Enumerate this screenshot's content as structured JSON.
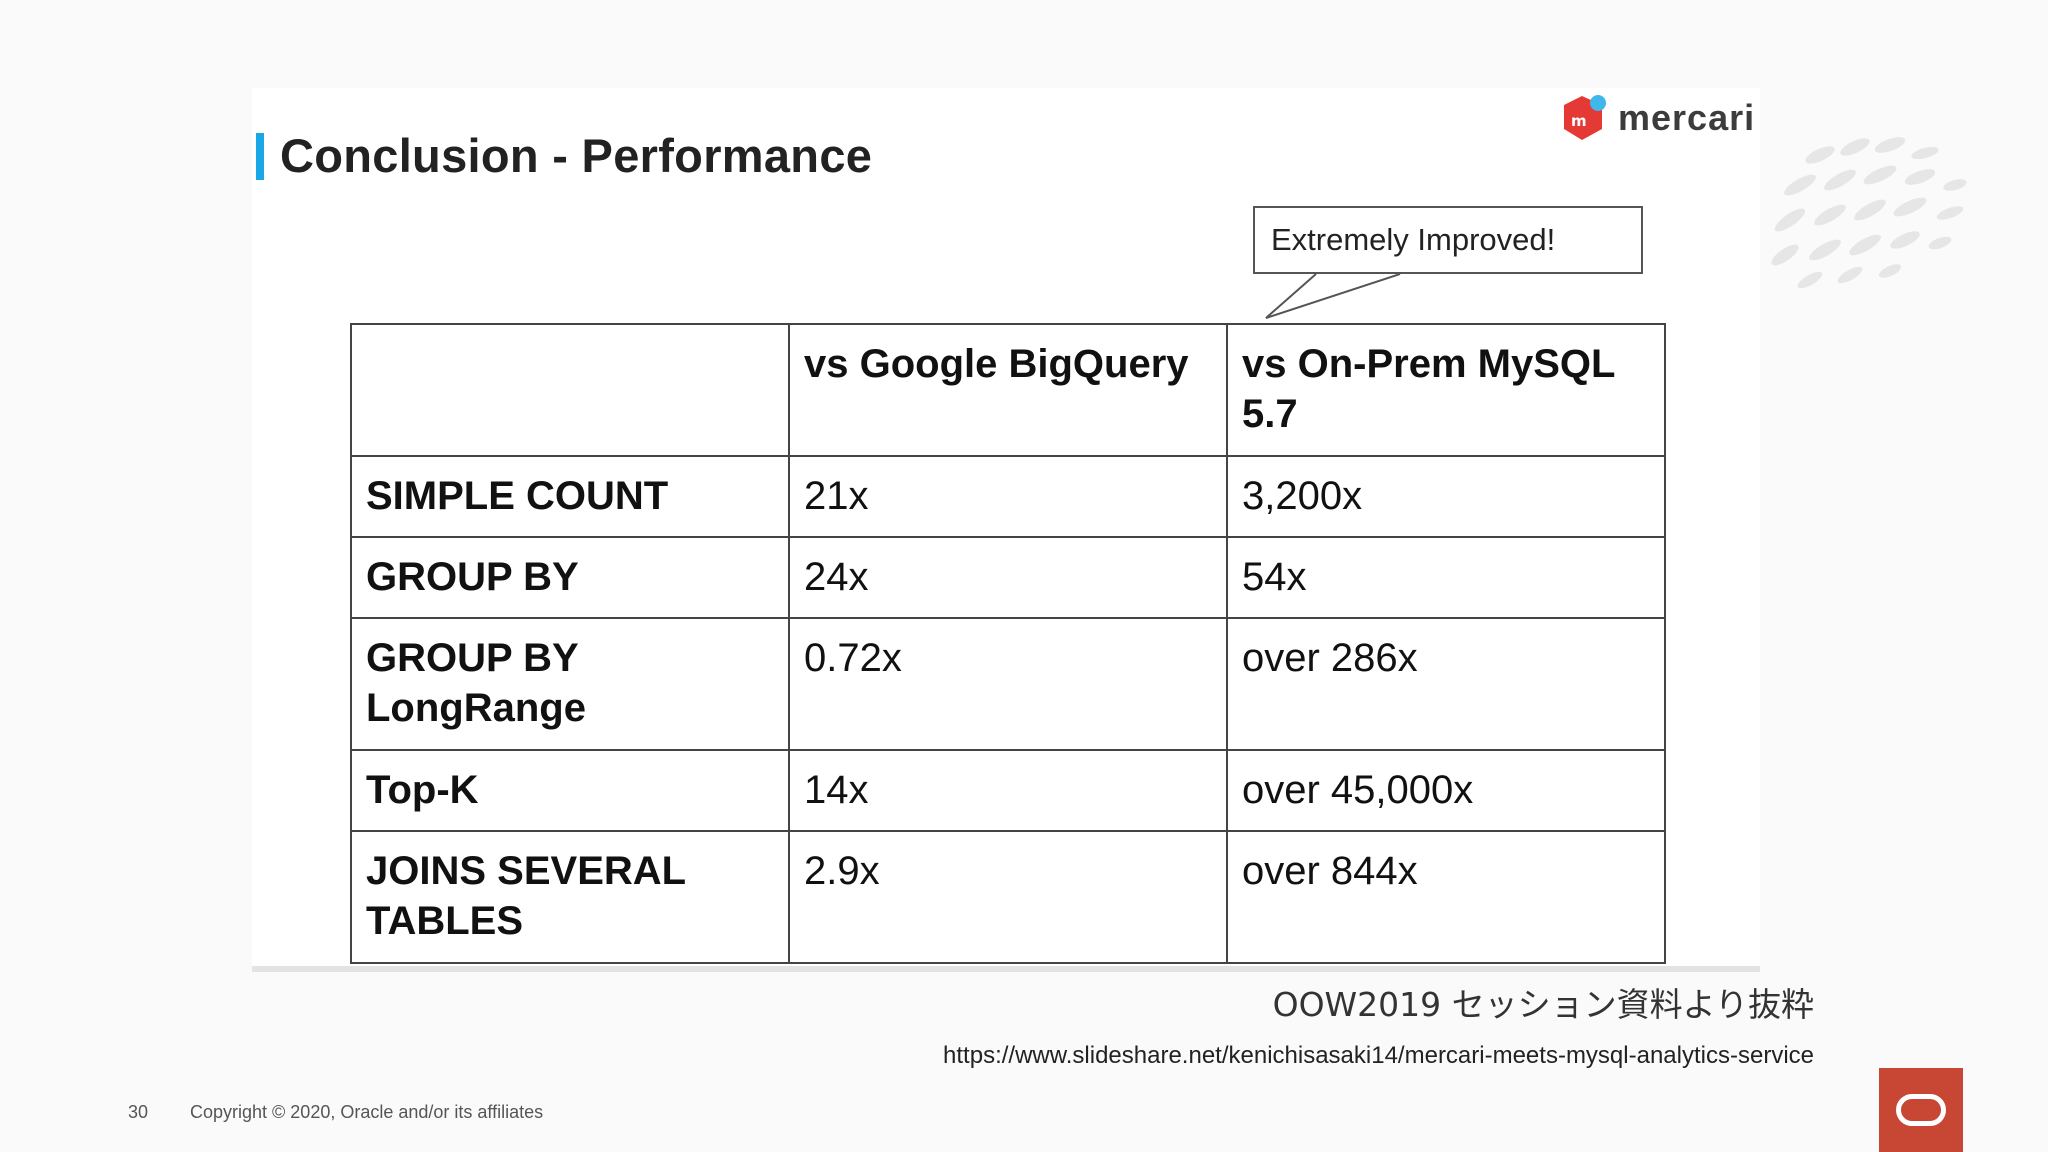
{
  "slide": {
    "title": "Conclusion - Performance",
    "brand": "mercari",
    "callout": "Extremely Improved!"
  },
  "table": {
    "headers": [
      "",
      "vs Google BigQuery",
      "vs On-Prem MySQL 5.7"
    ],
    "rows": [
      {
        "label": "SIMPLE COUNT",
        "bigquery": "21x",
        "mysql": "3,200x"
      },
      {
        "label": "GROUP BY",
        "bigquery": "24x",
        "mysql": "54x"
      },
      {
        "label": "GROUP BY LongRange",
        "bigquery": "0.72x",
        "mysql": "over 286x"
      },
      {
        "label": "Top-K",
        "bigquery": "14x",
        "mysql": "over 45,000x"
      },
      {
        "label": "JOINS SEVERAL TABLES",
        "bigquery": "2.9x",
        "mysql": "over 844x"
      }
    ]
  },
  "notes": {
    "source_jp": "OOW2019 セッション資料より抜粋",
    "source_url": "https://www.slideshare.net/kenichisasaki14/mercari-meets-mysql-analytics-service"
  },
  "footer": {
    "page_number": "30",
    "copyright": "Copyright © 2020, Oracle and/or its affiliates"
  },
  "colors": {
    "title_accent": "#1aa7e8",
    "mercari_red": "#e53935",
    "mercari_blue": "#3fb7ea",
    "oracle_red": "#c74634"
  },
  "icons": {
    "logo": "mercari-logo-icon",
    "footer_brand": "oracle-logo-icon"
  }
}
